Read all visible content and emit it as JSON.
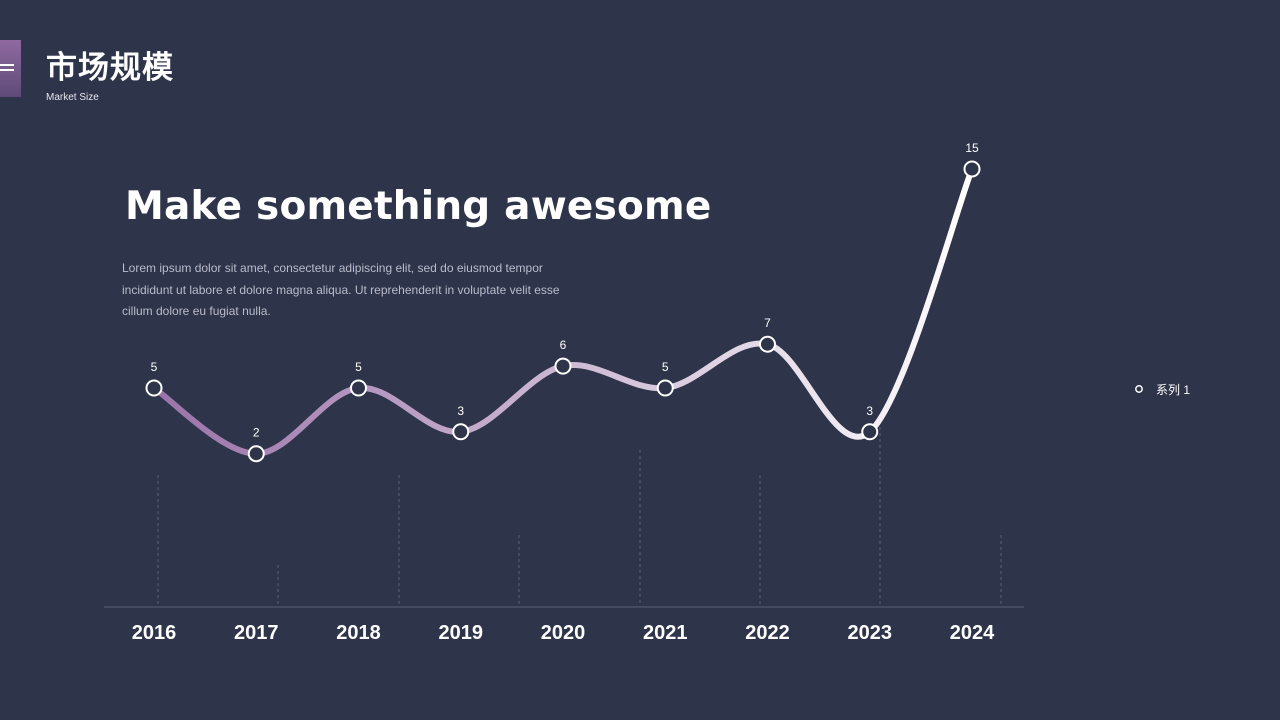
{
  "header": {
    "title": "市场规模",
    "subtitle": "Market Size"
  },
  "content": {
    "headline": "Make something awesome",
    "body": "Lorem ipsum dolor sit amet, consectetur adipiscing elit, sed do eiusmod tempor incididunt ut labore et dolore magna aliqua. Ut reprehenderit in voluptate velit esse cillum dolore eu fugiat nulla."
  },
  "colors": {
    "background": "#2e3449",
    "series_start": "#9a72a8",
    "series_end": "#ffffff",
    "marker_fill": "#2e3449",
    "axis": "#5a6078"
  },
  "icons": {
    "badge": "menu-icon"
  },
  "chart_data": {
    "type": "line",
    "smooth": true,
    "categories": [
      "2016",
      "2017",
      "2018",
      "2019",
      "2020",
      "2021",
      "2022",
      "2023",
      "2024"
    ],
    "series": [
      {
        "name": "系列 1",
        "values": [
          5,
          2,
          5,
          3,
          6,
          5,
          7,
          3,
          15
        ]
      }
    ],
    "data_labels": true,
    "ylim": [
      -5,
      16
    ],
    "legend": "right",
    "grid": false
  }
}
